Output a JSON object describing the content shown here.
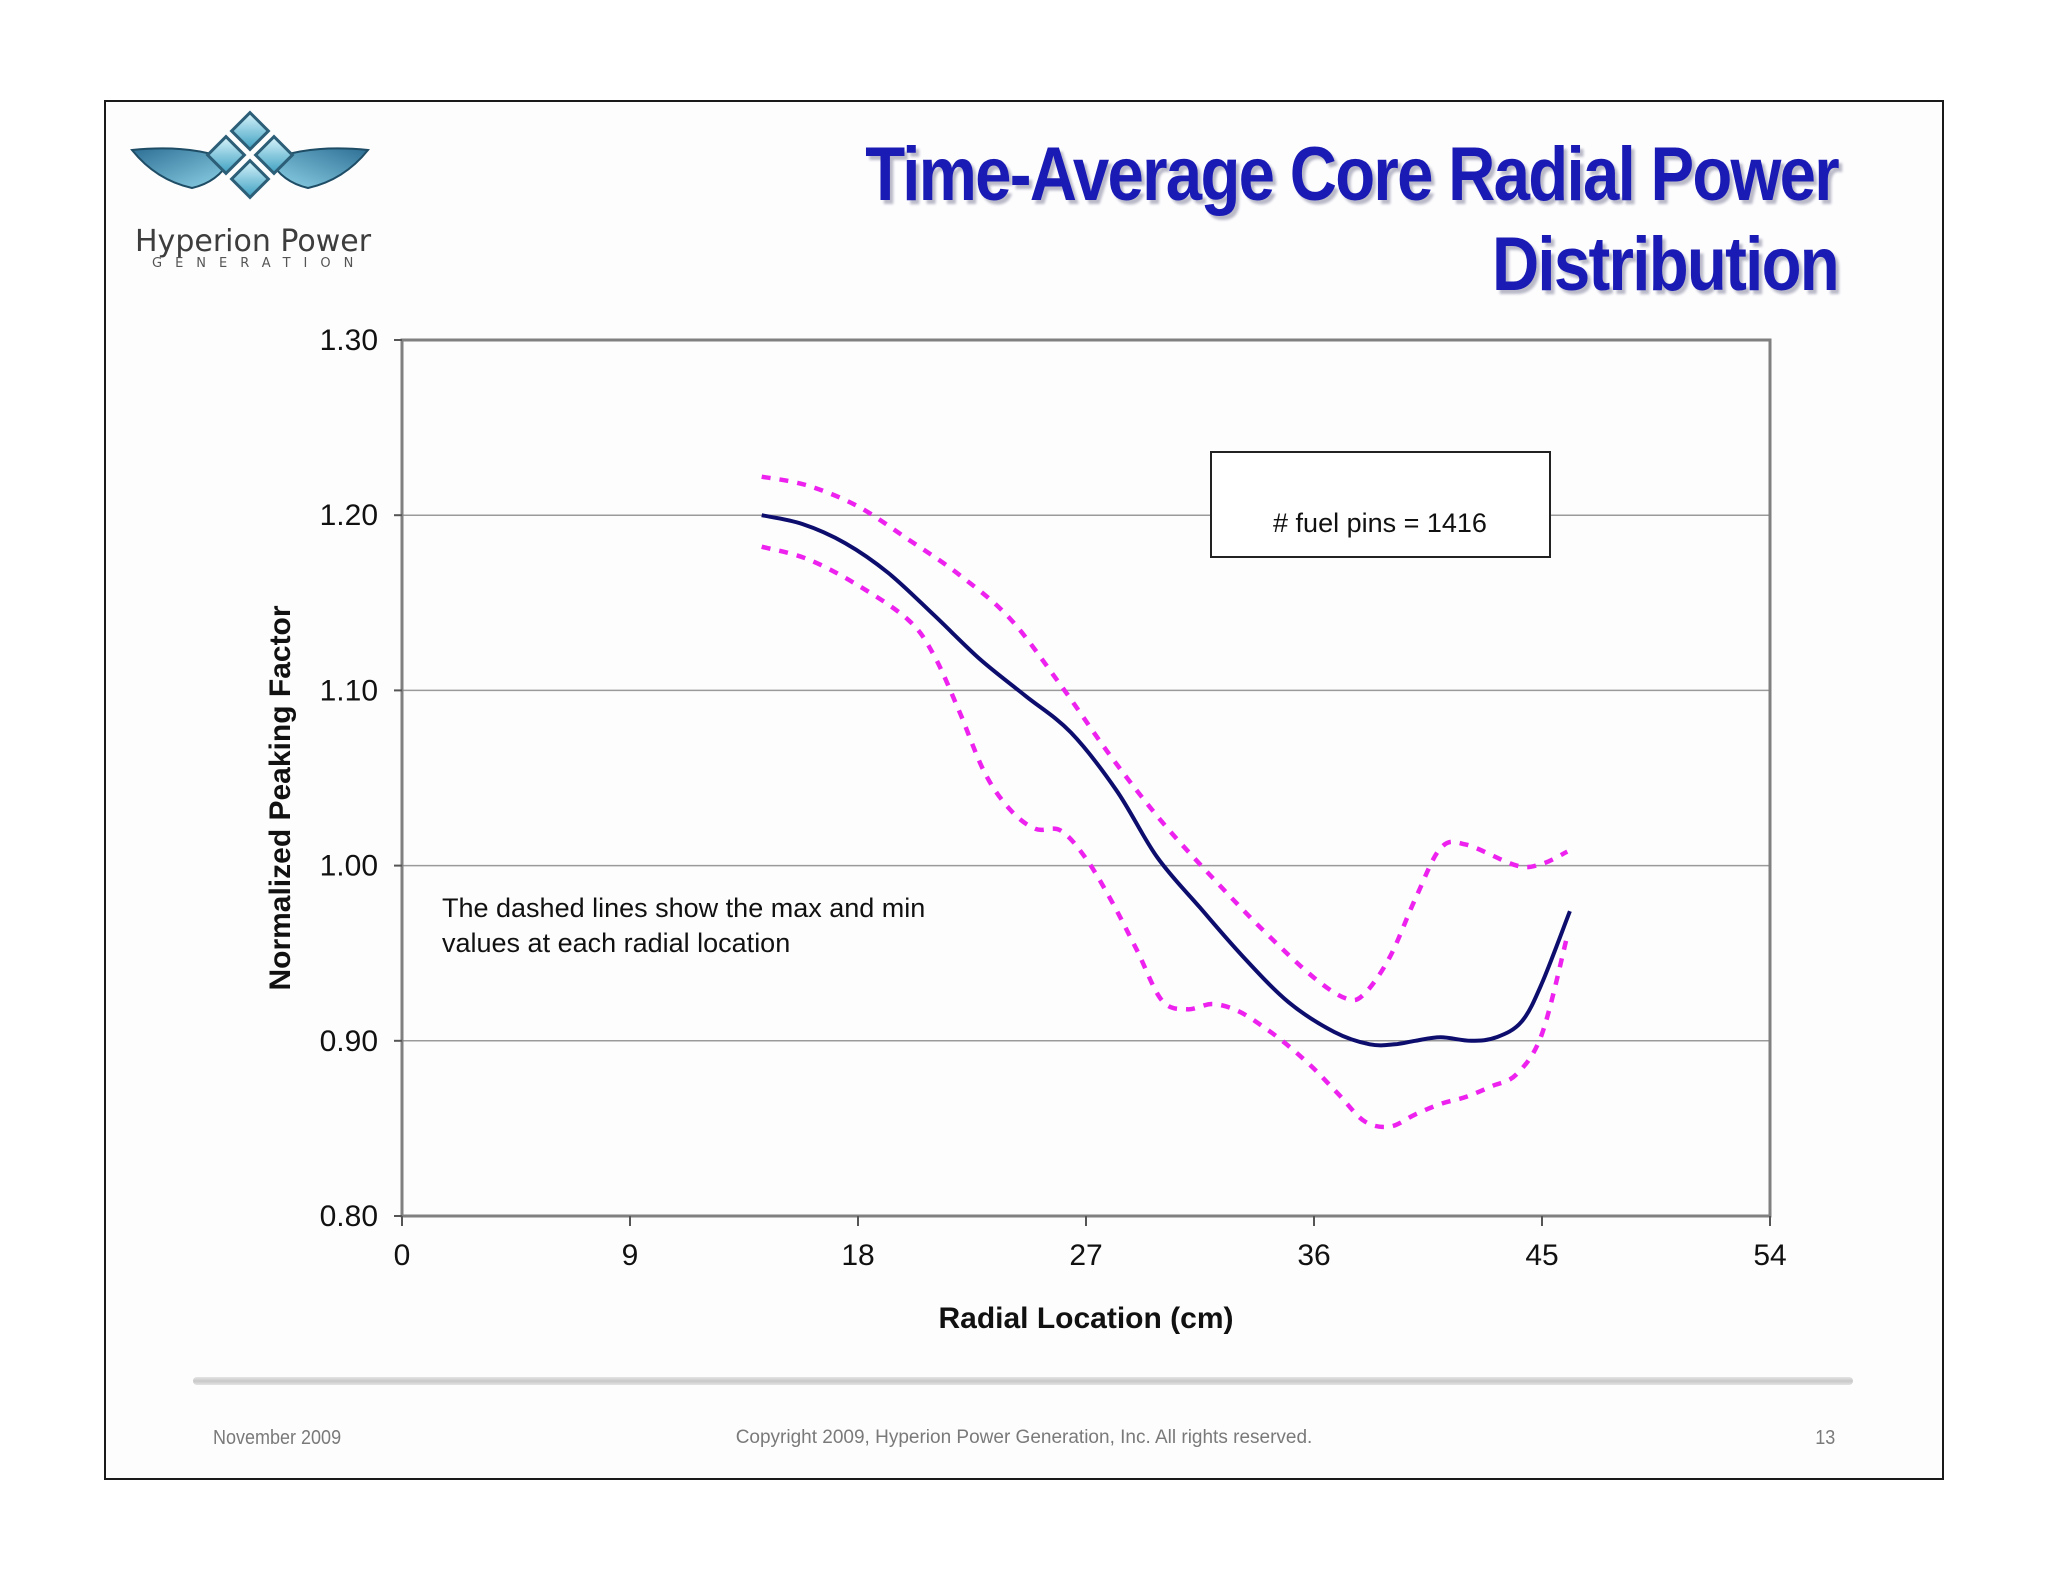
{
  "slide": {
    "logo": {
      "name": "Hyperion Power",
      "sub": "GENERATION"
    },
    "title_lines": [
      "Time-Average Core Radial Power",
      "Distribution"
    ],
    "footer": {
      "date": "November 2009",
      "copyright": "Copyright 2009, Hyperion Power Generation, Inc. All rights reserved.",
      "page": "13"
    },
    "colors": {
      "title": "#1a1ab4",
      "main_line": "#0d0d6e",
      "dashed_lines": "#ee22ee",
      "logo_blue": "#5fb4cf"
    }
  },
  "chart_data": {
    "type": "line",
    "title": "",
    "xlabel": "Radial Location (cm)",
    "ylabel": "Normalized Peaking Factor",
    "xlim": [
      0,
      54
    ],
    "ylim": [
      0.8,
      1.3
    ],
    "xticks": [
      0,
      9,
      18,
      27,
      36,
      45,
      54
    ],
    "xtick_labels": [
      "0",
      "9",
      "18",
      "27",
      "36",
      "45",
      "54"
    ],
    "yticks": [
      0.8,
      0.9,
      1.0,
      1.1,
      1.2,
      1.3
    ],
    "ytick_labels": [
      "0.80",
      "0.90",
      "1.00",
      "1.10",
      "1.20",
      "1.30"
    ],
    "grid": "horizontal",
    "series": [
      {
        "style": "solid",
        "color": "#0d0d6e",
        "x": [
          14.2,
          15.8,
          17.5,
          19.2,
          21.0,
          22.8,
          24.6,
          26.4,
          28.2,
          29.8,
          31.5,
          33.2,
          35.0,
          36.8,
          38.2,
          39.2,
          40.0,
          41.0,
          42.2,
          43.2,
          44.2,
          45.0,
          46.1
        ],
        "y": [
          1.2,
          1.195,
          1.184,
          1.167,
          1.143,
          1.118,
          1.097,
          1.076,
          1.043,
          1.005,
          0.976,
          0.948,
          0.922,
          0.905,
          0.898,
          0.898,
          0.9,
          0.902,
          0.9,
          0.902,
          0.911,
          0.933,
          0.974
        ]
      },
      {
        "style": "dashed",
        "color": "#ee22ee",
        "x": [
          14.2,
          16.0,
          18.0,
          20.0,
          22.0,
          24.0,
          26.0,
          28.0,
          30.0,
          32.0,
          34.0,
          36.0,
          37.3,
          38.0,
          39.0,
          40.0,
          41.0,
          42.0,
          44.0,
          45.0,
          46.0
        ],
        "y": [
          1.222,
          1.217,
          1.205,
          1.186,
          1.166,
          1.141,
          1.103,
          1.062,
          1.025,
          0.993,
          0.963,
          0.936,
          0.924,
          0.927,
          0.948,
          0.981,
          1.01,
          1.012,
          1.0,
          1.001,
          1.008
        ]
      },
      {
        "style": "dashed",
        "color": "#ee22ee",
        "x": [
          14.2,
          16.0,
          18.0,
          20.0,
          21.0,
          22.0,
          23.0,
          24.0,
          25.0,
          26.0,
          27.0,
          28.0,
          29.0,
          30.0,
          31.0,
          32.0,
          33.0,
          34.0,
          35.0,
          36.0,
          37.0,
          38.0,
          39.0,
          40.0,
          41.0,
          42.0,
          43.0,
          44.0,
          45.0,
          46.0
        ],
        "y": [
          1.182,
          1.175,
          1.16,
          1.14,
          1.12,
          1.088,
          1.053,
          1.032,
          1.021,
          1.02,
          1.004,
          0.98,
          0.952,
          0.923,
          0.918,
          0.921,
          0.917,
          0.908,
          0.897,
          0.884,
          0.869,
          0.854,
          0.851,
          0.858,
          0.864,
          0.868,
          0.874,
          0.881,
          0.904,
          0.96
        ]
      }
    ],
    "annotations": [
      {
        "text_lines": [
          "The dashed lines show the max and min",
          "values at each radial location"
        ]
      },
      {
        "text": "# fuel pins = 1416",
        "boxed": true
      }
    ]
  }
}
